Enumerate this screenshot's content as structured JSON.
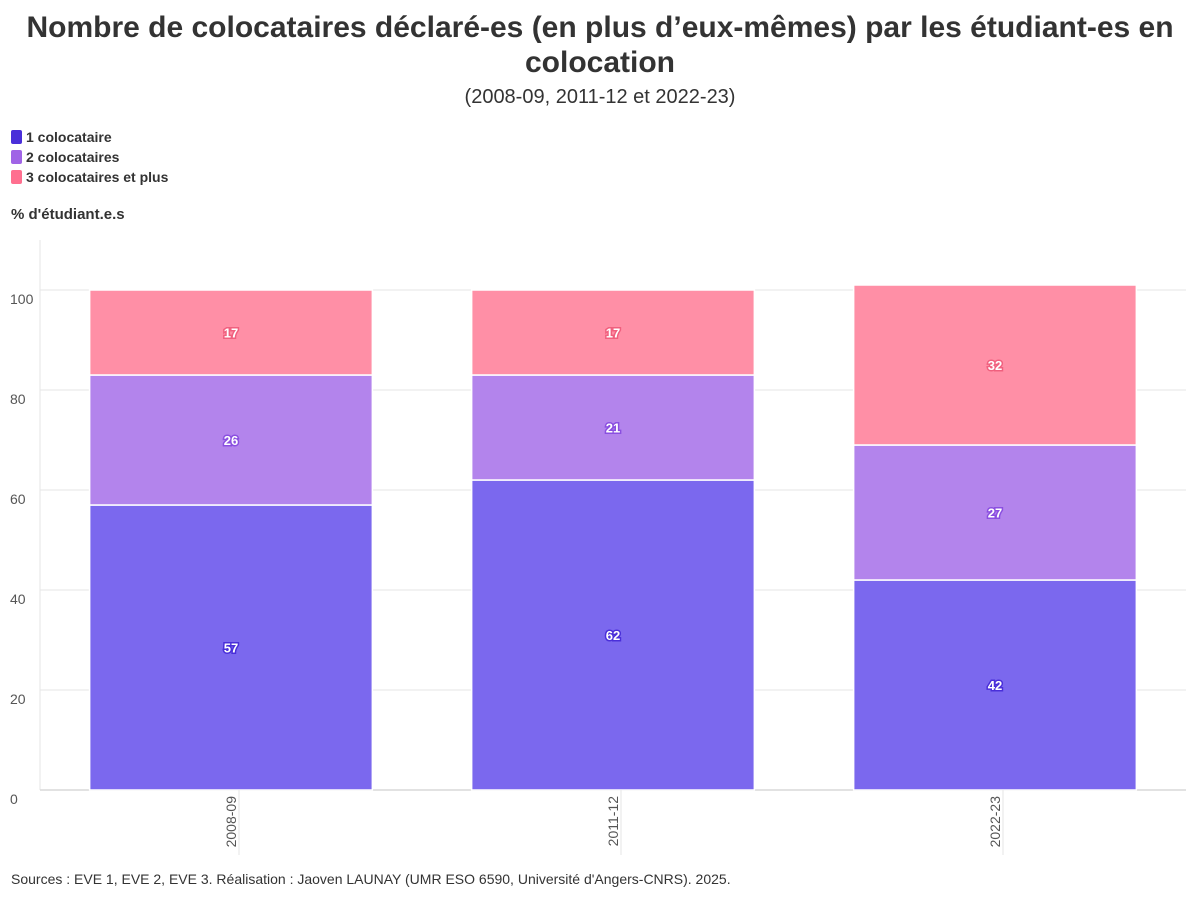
{
  "title": "Nombre de colocataires déclaré-es (en plus d’eux-mêmes) par les étudiant-es en colocation",
  "subtitle": "(2008-09, 2011-12 et 2022-23)",
  "source": "Sources : EVE 1, EVE 2, EVE 3. Réalisation : Jaoven LAUNAY (UMR ESO 6590, Université d'Angers-CNRS). 2025.",
  "chart_data": {
    "type": "bar",
    "stacked": true,
    "title": "Nombre de colocataires déclaré-es (en plus d’eux-mêmes) par les étudiant-es en colocation",
    "subtitle": "(2008-09, 2011-12 et 2022-23)",
    "xlabel": "",
    "ylabel": "% d'étudiant.e.s",
    "categories": [
      "2008-09",
      "2011-12",
      "2022-23"
    ],
    "series": [
      {
        "name": "1 colocataire",
        "values": [
          57,
          62,
          42
        ],
        "color": "#7b68ee",
        "label_color": "#4a2fd9"
      },
      {
        "name": "2 colocataires",
        "values": [
          26,
          21,
          27
        ],
        "color": "#b384ec",
        "label_color": "#8a4fe0"
      },
      {
        "name": "3 colocataires et plus",
        "values": [
          17,
          17,
          32
        ],
        "color": "#ff8fa6",
        "label_color": "#f0607e"
      }
    ],
    "legend_colors": [
      "#4a2fd9",
      "#a064e6",
      "#ff6f8f"
    ],
    "ylim": [
      0,
      110
    ],
    "yticks": [
      0,
      20,
      40,
      60,
      80,
      100
    ],
    "grid": true,
    "legend_position": "top-left"
  }
}
